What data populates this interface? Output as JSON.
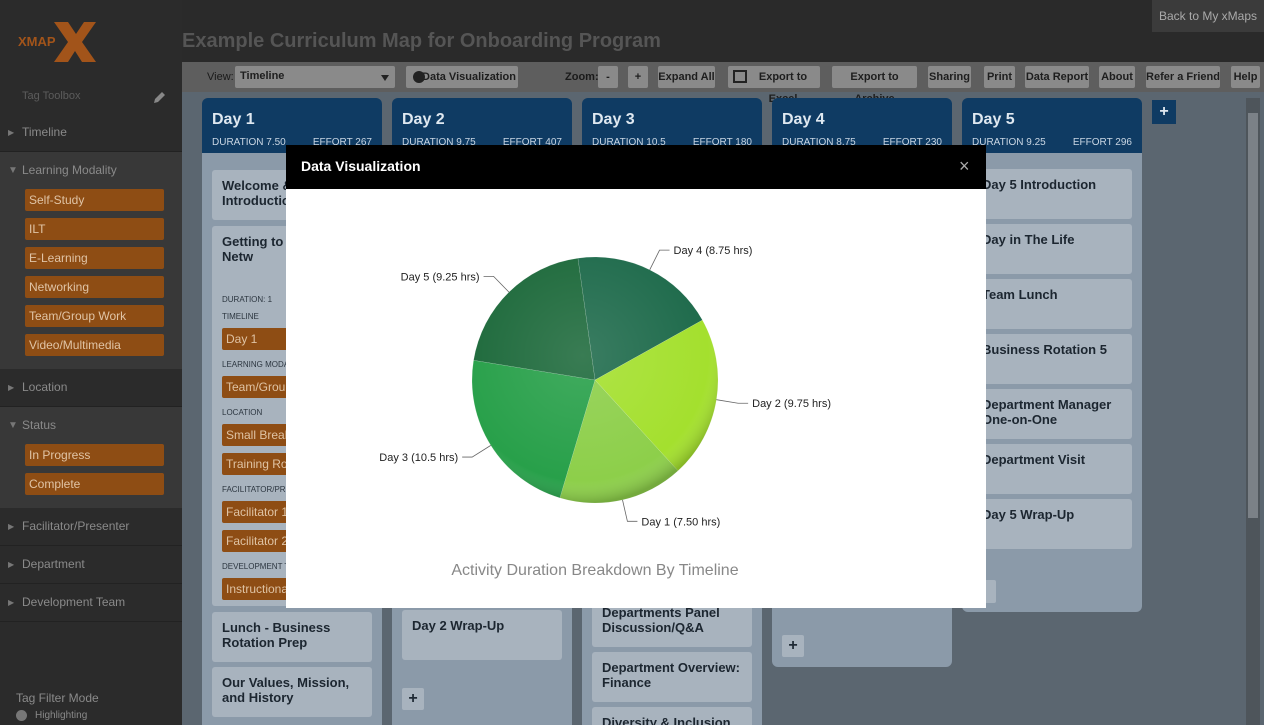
{
  "header": {
    "logo": "XMAP",
    "title": "Example Curriculum Map for Onboarding Program",
    "back": "Back to My xMaps"
  },
  "toolbar": {
    "view_label": "View:",
    "view_value": "Timeline",
    "zoom_label": "Zoom:",
    "buttons": [
      "Data Visualization",
      "-",
      "+",
      "Expand All",
      "Export to Excel",
      "Export to Archive",
      "Sharing",
      "Print",
      "Data Report",
      "About",
      "Refer a Friend",
      "Help"
    ]
  },
  "sidebar": {
    "toolbox": "Tag Toolbox",
    "sections": [
      {
        "label": "Timeline"
      },
      {
        "label": "Learning Modality",
        "tags": [
          "Self-Study",
          "ILT",
          "E-Learning",
          "Networking",
          "Team/Group Work",
          "Video/Multimedia"
        ]
      },
      {
        "label": "Location"
      },
      {
        "label": "Status",
        "tags": [
          "In Progress",
          "Complete"
        ]
      },
      {
        "label": "Facilitator/Presenter"
      },
      {
        "label": "Department"
      },
      {
        "label": "Development Team"
      }
    ],
    "filter_mode": "Tag Filter Mode",
    "highlighting": "Highlighting"
  },
  "board": {
    "add": "+",
    "columns": [
      {
        "day": "Day 1",
        "duration": "DURATION 7.50",
        "effort": "EFFORT 267",
        "cards": [
          {
            "title": "Welcome & Introduction"
          },
          {
            "title": "Getting to K Other: Netw",
            "duration": "DURATION: 1",
            "fields": [
              {
                "label": "TIMELINE",
                "tags": [
                  "Day 1"
                ]
              },
              {
                "label": "LEARNING MODA",
                "tags": [
                  "Team/Grou"
                ]
              },
              {
                "label": "LOCATION",
                "tags": [
                  "Small Break",
                  "Training Roo"
                ]
              },
              {
                "label": "FACILITATOR/PRE",
                "tags": [
                  "Facilitator 1",
                  "Facilitator 2"
                ]
              },
              {
                "label": "DEVELOPMENT TE",
                "tags": [
                  "Instructiona"
                ]
              }
            ]
          },
          {
            "title": "Lunch - Business Rotation Prep"
          },
          {
            "title": "Our Values, Mission, and History"
          }
        ]
      },
      {
        "day": "Day 2",
        "duration": "DURATION 9.75",
        "effort": "EFFORT 407",
        "cards": [
          {
            "title": "Day 2 Wrap-Up"
          }
        ]
      },
      {
        "day": "Day 3",
        "duration": "DURATION 10.5",
        "effort": "EFFORT 180",
        "cards": [
          {
            "title": "Departments Panel Discussion/Q&A"
          },
          {
            "title": "Department Overview: Finance"
          },
          {
            "title": "Diversity & Inclusion"
          }
        ]
      },
      {
        "day": "Day 4",
        "duration": "DURATION 8.75",
        "effort": "EFFORT 230",
        "cards": []
      },
      {
        "day": "Day 5",
        "duration": "DURATION 9.25",
        "effort": "EFFORT 296",
        "cards": [
          {
            "title": "Day 5 Introduction"
          },
          {
            "title": "Day in The Life"
          },
          {
            "title": "Team Lunch"
          },
          {
            "title": "Business Rotation 5"
          },
          {
            "title": "Department Manager One-on-One"
          },
          {
            "title": "Department Visit"
          },
          {
            "title": "Day 5 Wrap-Up"
          }
        ]
      }
    ]
  },
  "modal": {
    "title": "Data Visualization",
    "close": "×"
  },
  "chart_data": {
    "type": "pie",
    "title": "Activity Duration Breakdown By Timeline",
    "values": [
      8.75,
      9.75,
      7.5,
      10.5,
      9.25
    ],
    "value_labels": [
      "Day 4 (8.75 hrs)",
      "Day 2 (9.75 hrs)",
      "Day 1 (7.50 hrs)",
      "Day 3 (10.5 hrs)",
      "Day 5 (9.25 hrs)"
    ],
    "colors": [
      "#1f6b4c",
      "#a4e02e",
      "#8dcf4a",
      "#28a04a",
      "#1e6a3c"
    ]
  }
}
